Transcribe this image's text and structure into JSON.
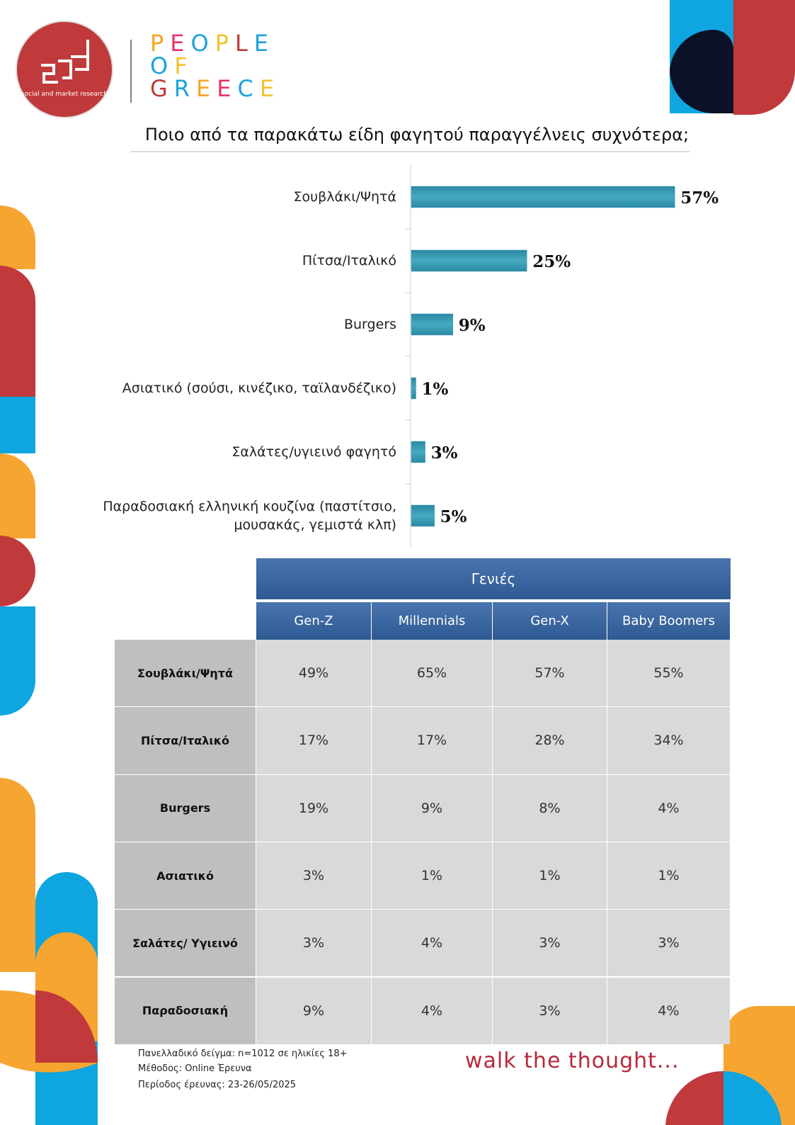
{
  "header": {
    "logo_text": "social and market research",
    "brand_lines": [
      "PEOPLE",
      "OF",
      "GREECE"
    ]
  },
  "chart_data": {
    "type": "bar",
    "orientation": "horizontal",
    "title": "Ποιο από τα παρακάτω είδη φαγητού παραγγέλνεις συχνότερα;",
    "categories": [
      "Σουβλάκι/Ψητά",
      "Πίτσα/Ιταλικό",
      "Burgers",
      "Ασιατικό (σούσι, κινέζικο, ταϊλανδέζικο)",
      "Σαλάτες/υγιεινό φαγητό",
      "Παραδοσιακή ελληνική κουζίνα (παστίτσιο, μουσακάς, γεμιστά κλπ)"
    ],
    "values": [
      57,
      25,
      9,
      1,
      3,
      5
    ],
    "value_labels": [
      "57%",
      "25%",
      "9%",
      "1%",
      "3%",
      "5%"
    ],
    "color": "#3a9bb5"
  },
  "table": {
    "group_header": "Γενιές",
    "columns": [
      "Gen-Z",
      "Millennials",
      "Gen-X",
      "Baby Boomers"
    ],
    "rows": [
      [
        "Σουβλάκι/Ψητά",
        "49%",
        "65%",
        "57%",
        "55%"
      ],
      [
        "Πίτσα/Ιταλικό",
        "17%",
        "17%",
        "28%",
        "34%"
      ],
      [
        "Burgers",
        "19%",
        "9%",
        "8%",
        "4%"
      ],
      [
        "Ασιατικό",
        "3%",
        "1%",
        "1%",
        "1%"
      ],
      [
        "Σαλάτες/ Υγιεινό",
        "3%",
        "4%",
        "3%",
        "3%"
      ],
      [
        "Παραδοσιακή",
        "9%",
        "4%",
        "3%",
        "4%"
      ]
    ]
  },
  "footer": {
    "notes": [
      "Πανελλαδικό δείγμα: n=1012 σε ηλικίες 18+",
      "Μέθοδος: Online Έρευνα",
      "Περίοδος έρευνας:  23-26/05/2025"
    ],
    "tagline": "walk the thought..."
  }
}
